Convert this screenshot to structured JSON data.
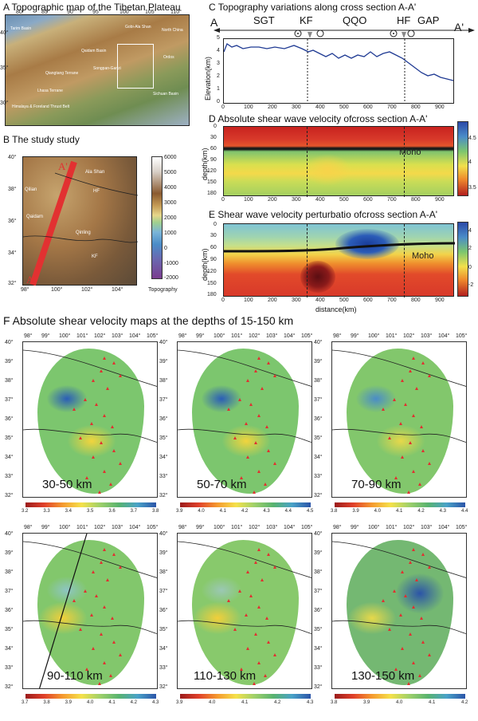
{
  "panelA": {
    "title": "A Topographic map of the Tibetan Plateau",
    "lon_ticks": [
      "80°",
      "85°",
      "90°",
      "95°",
      "100°",
      "105°",
      "110°"
    ],
    "lat_ticks": [
      "40°",
      "35°",
      "30°"
    ],
    "labels": [
      "Tarim Basin",
      "Qaidam Basin",
      "Qiangtang Terrane",
      "Lhasa Terrane",
      "Sichuan Basin",
      "Ordos",
      "North China",
      "Songpan-Ganzi",
      "Gobi-Ala Shan",
      "Himalaya & Foreland Thrust Belt"
    ]
  },
  "panelB": {
    "title": "B The study study",
    "lat_ticks": [
      "40°",
      "38°",
      "36°",
      "34°",
      "32°"
    ],
    "lon_ticks": [
      "98°",
      "100°",
      "102°",
      "104°"
    ],
    "labels": [
      "A'",
      "Ala Shan",
      "Qilian",
      "HF",
      "Qaidam",
      "Qinling",
      "KF",
      "A"
    ],
    "colorbar_ticks": [
      "6000",
      "5000",
      "4000",
      "3000",
      "2000",
      "1000",
      "0",
      "-1000",
      "-2000"
    ],
    "colorbar_label": "Topography"
  },
  "panelC": {
    "title": "C Topography variations along cross section A-A'",
    "end_left": "A",
    "end_right": "A'",
    "segments": [
      "SGT",
      "KF",
      "QQO",
      "HF",
      "GAP"
    ],
    "ylabel": "Elevation(km)",
    "yticks": [
      "5",
      "4",
      "3",
      "2",
      "1",
      "0"
    ],
    "xticks": [
      "0",
      "100",
      "200",
      "300",
      "400",
      "500",
      "600",
      "700",
      "800",
      "900"
    ]
  },
  "panelD": {
    "title": "D Absolute shear wave velocity ofcross section A-A'",
    "ylabel": "depth(km)",
    "yticks": [
      "0",
      "30",
      "60",
      "90",
      "120",
      "150",
      "180"
    ],
    "xticks": [
      "0",
      "100",
      "200",
      "300",
      "400",
      "500",
      "600",
      "700",
      "800",
      "900"
    ],
    "moho": "Moho",
    "colorbar_ticks": [
      "4.5",
      "4",
      "3.5"
    ]
  },
  "panelE": {
    "title": "E Shear wave velocity perturbatio ofcross section A-A'",
    "ylabel": "depth(km)",
    "yticks": [
      "0",
      "30",
      "60",
      "90",
      "120",
      "150",
      "180"
    ],
    "xticks": [
      "0",
      "100",
      "200",
      "300",
      "400",
      "500",
      "600",
      "700",
      "800",
      "900"
    ],
    "xlabel": "distance(km)",
    "moho": "Moho",
    "colorbar_ticks": [
      "4",
      "2",
      "0",
      "-2"
    ]
  },
  "panelF": {
    "title": "F Absolute shear velocity maps at the depths of 15-150 km",
    "lon_ticks": [
      "98°",
      "99°",
      "100°",
      "101°",
      "102°",
      "103°",
      "104°",
      "105°"
    ],
    "lat_ticks": [
      "40°",
      "39°",
      "38°",
      "37°",
      "36°",
      "35°",
      "34°",
      "33°",
      "32°"
    ],
    "maps": [
      {
        "depth": "30-50 km",
        "ticks": [
          "3.2",
          "3.3",
          "3.4",
          "3.5",
          "3.6",
          "3.7",
          "3.8"
        ]
      },
      {
        "depth": "50-70 km",
        "ticks": [
          "3.9",
          "4.0",
          "4.1",
          "4.2",
          "4.3",
          "4.4",
          "4.5"
        ]
      },
      {
        "depth": "70-90 km",
        "ticks": [
          "3.8",
          "3.9",
          "4.0",
          "4.1",
          "4.2",
          "4.3",
          "4.4"
        ]
      },
      {
        "depth": "90-110 km",
        "ticks": [
          "3.7",
          "3.8",
          "3.9",
          "4.0",
          "4.1",
          "4.2",
          "4.3"
        ]
      },
      {
        "depth": "110-130 km",
        "ticks": [
          "3.9",
          "4.0",
          "4.1",
          "4.2",
          "4.3"
        ]
      },
      {
        "depth": "130-150 km",
        "ticks": [
          "3.8",
          "3.9",
          "4.0",
          "4.1",
          "4.2"
        ]
      }
    ]
  }
}
